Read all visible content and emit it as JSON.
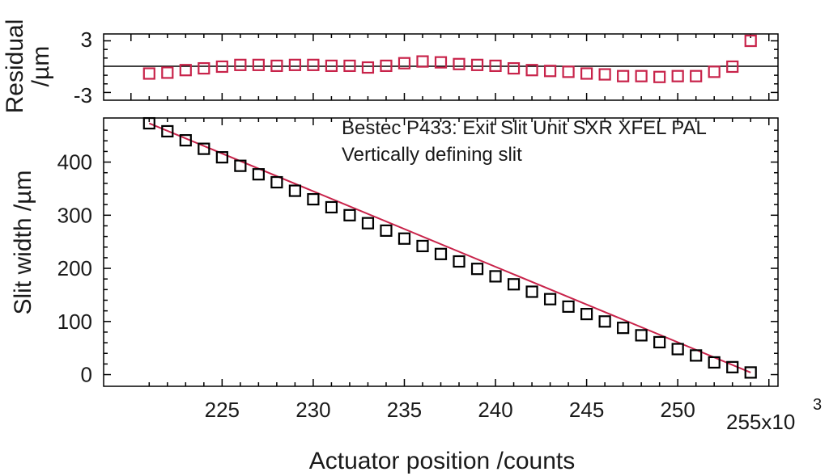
{
  "chart_data": [
    {
      "type": "scatter",
      "panel": "residual",
      "ylabel": "Residual\n/µm",
      "ytick_labels": [
        "3",
        "-3"
      ],
      "yticks": [
        3,
        -3
      ],
      "ylim": [
        -3.9,
        3.8
      ],
      "marker_color": "#c8234a",
      "x": [
        221000,
        222000,
        223000,
        224000,
        225000,
        226000,
        227000,
        228000,
        229000,
        230000,
        231000,
        232000,
        233000,
        234000,
        235000,
        236000,
        237000,
        238000,
        239000,
        240000,
        241000,
        242000,
        243000,
        244000,
        245000,
        246000,
        247000,
        248000,
        249000,
        250000,
        251000,
        252000,
        253000,
        254000
      ],
      "y": [
        -0.8,
        -0.7,
        -0.4,
        -0.2,
        0.0,
        0.2,
        0.2,
        0.1,
        0.2,
        0.2,
        0.1,
        0.1,
        -0.1,
        0.1,
        0.4,
        0.6,
        0.5,
        0.3,
        0.2,
        0.1,
        -0.2,
        -0.4,
        -0.5,
        -0.6,
        -0.8,
        -0.9,
        -1.1,
        -1.1,
        -1.2,
        -1.1,
        -1.1,
        -0.6,
        0.0,
        3.0
      ]
    },
    {
      "type": "scatter",
      "panel": "main",
      "xlabel": "Actuator position /counts",
      "ylabel": "Slit width /µm",
      "xlim": [
        218500,
        255500
      ],
      "ylim": [
        -22,
        483
      ],
      "xticks": [
        225000,
        230000,
        235000,
        240000,
        245000,
        250000,
        255000
      ],
      "xtick_labels": [
        "225",
        "230",
        "235",
        "240",
        "245",
        "250",
        "255"
      ],
      "x_multiplier_label": "x10",
      "x_multiplier_exponent": "3",
      "yticks": [
        0,
        100,
        200,
        300,
        400
      ],
      "ytick_labels": [
        "0",
        "100",
        "200",
        "300",
        "400"
      ],
      "annotations": [
        "Bestec P433: Exit Slit Unit SXR XFEL PAL",
        "Vertically defining slit"
      ],
      "marker_color": "#000000",
      "fit": {
        "type": "line",
        "color": "#c8234a",
        "x": [
          221000,
          254000
        ],
        "y": [
          473,
          4
        ]
      },
      "x": [
        221000,
        222000,
        223000,
        224000,
        225000,
        226000,
        227000,
        228000,
        229000,
        230000,
        231000,
        232000,
        233000,
        234000,
        235000,
        236000,
        237000,
        238000,
        239000,
        240000,
        241000,
        242000,
        243000,
        244000,
        245000,
        246000,
        247000,
        248000,
        249000,
        250000,
        251000,
        252000,
        253000,
        254000
      ],
      "y": [
        473,
        458,
        441,
        425,
        409,
        393,
        377,
        362,
        346,
        330,
        315,
        300,
        285,
        271,
        256,
        242,
        227,
        213,
        199,
        185,
        170,
        156,
        142,
        128,
        114,
        100,
        88,
        74,
        61,
        48,
        36,
        23,
        14,
        4
      ]
    }
  ]
}
